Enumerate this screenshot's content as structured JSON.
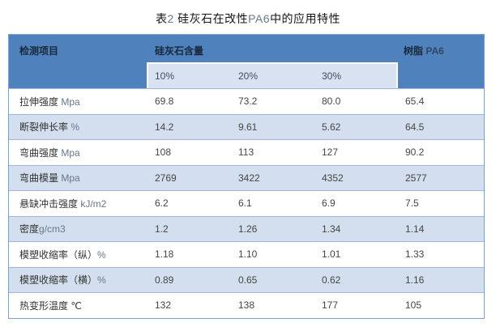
{
  "page": {
    "title": "表2 硅灰石在改性PA6中的应用特性"
  },
  "colors": {
    "header_bg": "#4f81bd",
    "subheader_band_bg": "#d8e2f1",
    "alt_row_bg": "#d3dfee",
    "outer_border": "#7ba0ca",
    "row_divider": "#9db8d9",
    "header_text": "#18293a",
    "body_text": "#454545"
  },
  "table": {
    "header": {
      "items_col": "检测项目",
      "group_col": "硅灰石含量",
      "resin_col": "树脂 PA6",
      "sub_cols": [
        "10%",
        "20%",
        "30%"
      ]
    },
    "rows": [
      {
        "label": "拉伸强度 Mpa",
        "values": [
          "69.8",
          "73.2",
          "80.0",
          "65.4"
        ]
      },
      {
        "label": "断裂伸长率 %",
        "values": [
          "14.2",
          "9.61",
          "5.62",
          "64.5"
        ]
      },
      {
        "label": "弯曲强度 Mpa",
        "values": [
          "108",
          "113",
          "127",
          "90.2"
        ]
      },
      {
        "label": "弯曲模量 Mpa",
        "values": [
          "2769",
          "3422",
          "4352",
          "2577"
        ]
      },
      {
        "label": "悬缺冲击强度 kJ/m2",
        "values": [
          "6.2",
          "6.1",
          "6.9",
          "7.5"
        ]
      },
      {
        "label": "密度g/cm3",
        "values": [
          "1.2",
          "1.26",
          "1.34",
          "1.14"
        ]
      },
      {
        "label": "模塑收缩率（纵）%",
        "values": [
          "1.18",
          "1.10",
          "1.01",
          "1.33"
        ]
      },
      {
        "label": "模塑收缩率（横）%",
        "values": [
          "0.89",
          "0.65",
          "0.62",
          "1.16"
        ]
      },
      {
        "label": "热变形温度 ℃",
        "values": [
          "132",
          "138",
          "177",
          "105"
        ]
      }
    ]
  },
  "chart_data": {
    "type": "table",
    "title": "表2 硅灰石在改性PA6中的应用特性",
    "columns": [
      "检测项目",
      "硅灰石含量 10%",
      "硅灰石含量 20%",
      "硅灰石含量 30%",
      "树脂 PA6"
    ],
    "rows": [
      [
        "拉伸强度 Mpa",
        69.8,
        73.2,
        80.0,
        65.4
      ],
      [
        "断裂伸长率 %",
        14.2,
        9.61,
        5.62,
        64.5
      ],
      [
        "弯曲强度 Mpa",
        108,
        113,
        127,
        90.2
      ],
      [
        "弯曲模量 Mpa",
        2769,
        3422,
        4352,
        2577
      ],
      [
        "悬缺冲击强度 kJ/m2",
        6.2,
        6.1,
        6.9,
        7.5
      ],
      [
        "密度g/cm3",
        1.2,
        1.26,
        1.34,
        1.14
      ],
      [
        "模塑收缩率（纵）%",
        1.18,
        1.1,
        1.01,
        1.33
      ],
      [
        "模塑收缩率（横）%",
        0.89,
        0.65,
        0.62,
        1.16
      ],
      [
        "热变形温度 ℃",
        132,
        138,
        177,
        105
      ]
    ]
  }
}
